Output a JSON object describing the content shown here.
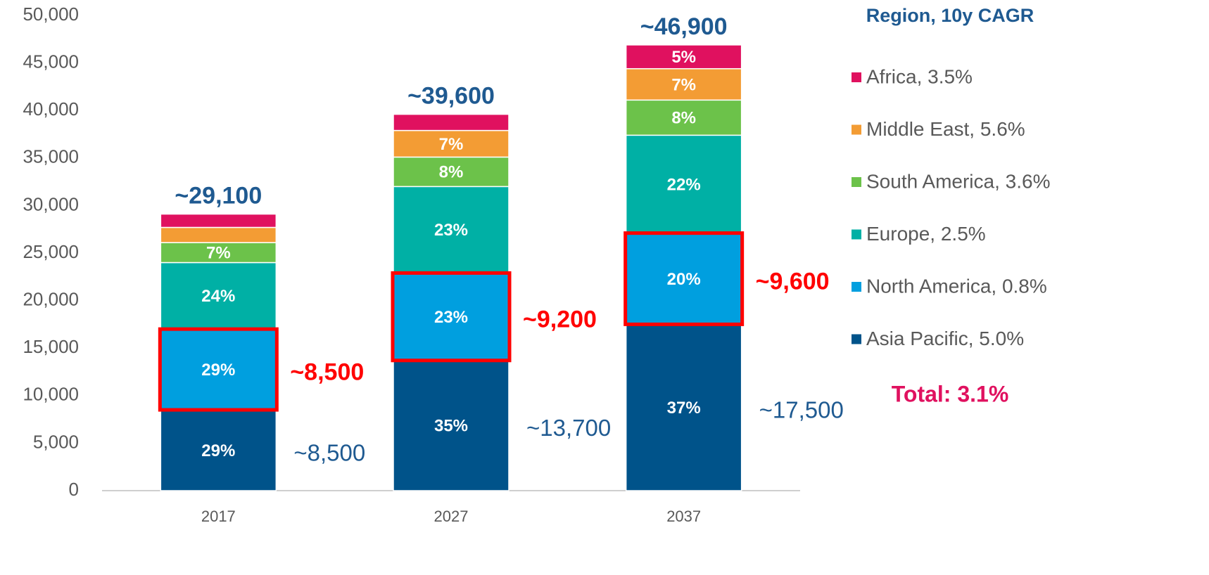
{
  "chart_data": {
    "type": "stacked_bar",
    "categories": [
      "2017",
      "2027",
      "2037"
    ],
    "ylim": [
      0,
      50000
    ],
    "yticks": [
      0,
      {
        "value": 5000,
        "label": "5,000"
      },
      {
        "value": 10000,
        "label": "10,000"
      },
      {
        "value": 15000,
        "label": "15,000"
      },
      {
        "value": 20000,
        "label": "20,000"
      },
      {
        "value": 25000,
        "label": "25,000"
      },
      {
        "value": 30000,
        "label": "30,000"
      },
      {
        "value": 35000,
        "label": "35,000"
      },
      {
        "value": 40000,
        "label": "40,000"
      },
      {
        "value": 45000,
        "label": "45,000"
      },
      {
        "value": 50000,
        "label": "50,000"
      }
    ],
    "series": [
      {
        "name": "Asia Pacific, 5.0%",
        "color": "#00538a",
        "values": [
          8500,
          13700,
          17500
        ],
        "share_labels": [
          "29%",
          "35%",
          "37%"
        ],
        "value_labels": [
          "~8,500",
          "~13,700",
          "~17,500"
        ]
      },
      {
        "name": "North America, 0.8%",
        "color": "#009fdf",
        "values": [
          8500,
          9200,
          9600
        ],
        "share_labels": [
          "29%",
          "23%",
          "20%"
        ],
        "value_labels": [
          "~8,500",
          "~9,200",
          "~9,600"
        ],
        "highlight": true
      },
      {
        "name": "Europe, 2.5%",
        "color": "#00b0a5",
        "values": [
          7000,
          9100,
          10300
        ],
        "share_labels": [
          "24%",
          "23%",
          "22%"
        ]
      },
      {
        "name": "South America, 3.6%",
        "color": "#6cc24a",
        "values": [
          2100,
          3100,
          3700
        ],
        "share_labels": [
          "7%",
          "8%",
          "8%"
        ]
      },
      {
        "name": "Middle East, 5.6%",
        "color": "#f39c34",
        "values": [
          1600,
          2800,
          3300
        ],
        "share_labels": [
          null,
          "7%",
          "7%"
        ]
      },
      {
        "name": "Africa, 3.5%",
        "color": "#e0115f",
        "values": [
          1400,
          1700,
          2500
        ],
        "share_labels": [
          null,
          null,
          "5%"
        ]
      }
    ],
    "total_labels": [
      "~29,100",
      "~39,600",
      "~46,900"
    ],
    "legend_title": "Region, 10y CAGR",
    "annotation": "Total: 3.1%"
  }
}
